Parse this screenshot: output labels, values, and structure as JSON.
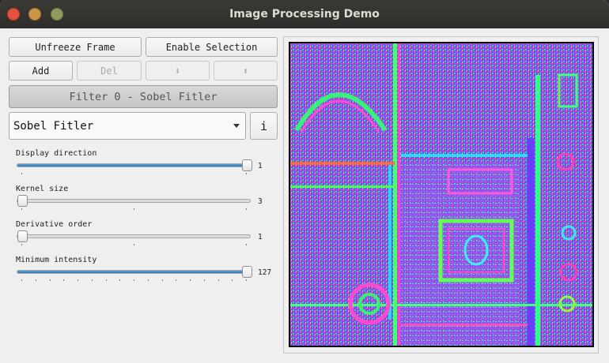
{
  "window": {
    "title": "Image Processing Demo"
  },
  "toolbar": {
    "unfreeze_label": "Unfreeze Frame",
    "enable_selection_label": "Enable Selection",
    "add_label": "Add",
    "del_label": "Del",
    "move_down_label": "⬇",
    "move_up_label": "⬆"
  },
  "filter": {
    "header_label": "Filter 0 - Sobel Fitler",
    "selected_option": "Sobel Fitler",
    "info_label": "i"
  },
  "sliders": [
    {
      "label": "Display direction",
      "value": "1",
      "fraction": 1.0,
      "ticks": 2
    },
    {
      "label": "Kernel size",
      "value": "3",
      "fraction": 0.0,
      "ticks": 3
    },
    {
      "label": "Derivative order",
      "value": "1",
      "fraction": 0.0,
      "ticks": 3
    },
    {
      "label": "Minimum intensity",
      "value": "127",
      "fraction": 1.0,
      "ticks": 17
    }
  ],
  "image": {
    "description_icon": "sobel-output-image"
  }
}
